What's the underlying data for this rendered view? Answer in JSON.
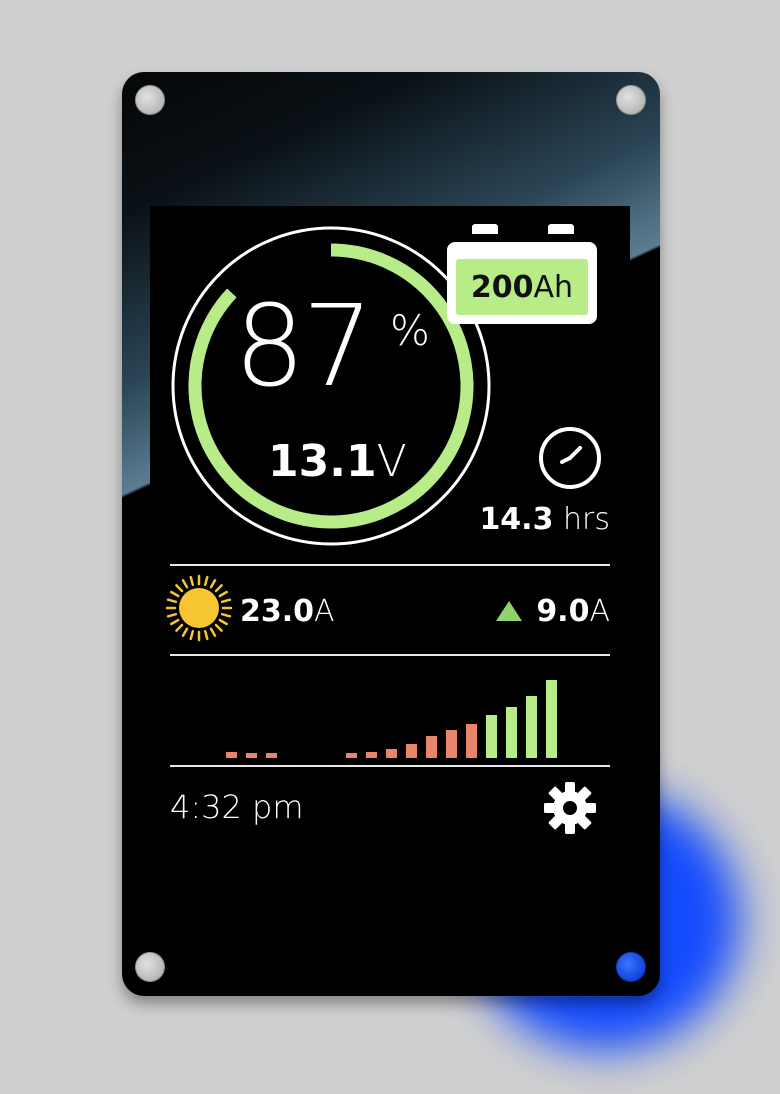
{
  "battery": {
    "state_of_charge_percent": 87,
    "soc_value": "87",
    "soc_unit": "%",
    "voltage_value": "13.1",
    "voltage_unit": "V",
    "capacity_value": "200",
    "capacity_unit": "Ah"
  },
  "runtime": {
    "value": "14.3",
    "unit": "hrs",
    "icon": "clock-icon"
  },
  "solar": {
    "icon": "sun-icon",
    "current_value": "23.0",
    "current_unit": "A"
  },
  "charging": {
    "icon": "up-triangle-icon",
    "current_value": "9.0",
    "current_unit": "A"
  },
  "history": {
    "bars": [
      {
        "value": 0.08,
        "status": "low"
      },
      {
        "value": 0.05,
        "status": "low"
      },
      {
        "value": 0.04,
        "status": "low"
      },
      {
        "value": 0.0,
        "status": "none"
      },
      {
        "value": 0.0,
        "status": "none"
      },
      {
        "value": 0.0,
        "status": "none"
      },
      {
        "value": 0.04,
        "status": "low"
      },
      {
        "value": 0.08,
        "status": "low"
      },
      {
        "value": 0.12,
        "status": "low"
      },
      {
        "value": 0.18,
        "status": "low"
      },
      {
        "value": 0.28,
        "status": "low"
      },
      {
        "value": 0.36,
        "status": "low"
      },
      {
        "value": 0.44,
        "status": "low"
      },
      {
        "value": 0.55,
        "status": "high"
      },
      {
        "value": 0.66,
        "status": "high"
      },
      {
        "value": 0.8,
        "status": "high"
      },
      {
        "value": 1.0,
        "status": "high"
      }
    ]
  },
  "footer": {
    "time": "4:32 pm",
    "settings_icon": "gear-icon"
  },
  "colors": {
    "ring": "#b8ec88",
    "bar_low": "#e8856a",
    "bar_high": "#b8ec88",
    "sun": "#f7c531",
    "triangle": "#8fd36a"
  }
}
